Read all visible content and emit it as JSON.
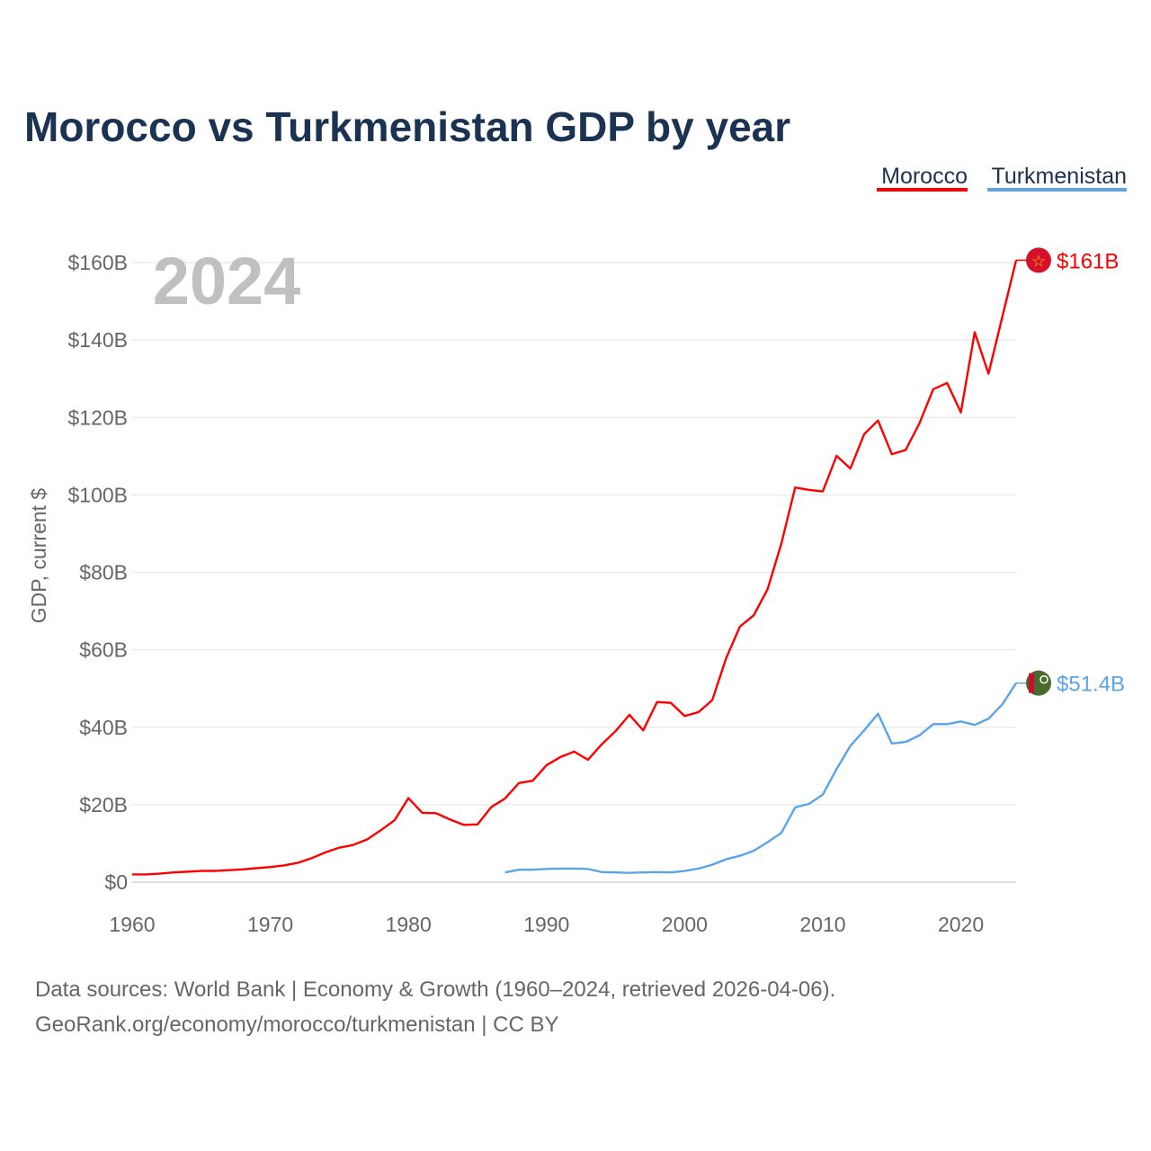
{
  "chart_data": {
    "type": "line",
    "title": "Morocco vs Turkmenistan GDP by year",
    "ylabel": "GDP, current $",
    "xlabel": "",
    "year_watermark": "2024",
    "xlim": [
      1960,
      2024
    ],
    "ylim": [
      0,
      160
    ],
    "x_ticks": [
      1960,
      1970,
      1980,
      1990,
      2000,
      2010,
      2020
    ],
    "x_tick_labels": [
      "1960",
      "1970",
      "1980",
      "1990",
      "2000",
      "2010",
      "2020"
    ],
    "y_ticks": [
      0,
      20,
      40,
      60,
      80,
      100,
      120,
      140,
      160
    ],
    "y_tick_labels": [
      "$0",
      "$20B",
      "$40B",
      "$60B",
      "$80B",
      "$100B",
      "$120B",
      "$140B",
      "$160B"
    ],
    "grid": true,
    "legend_placement": "top-right",
    "series": [
      {
        "name": "Morocco",
        "color": "#ff0000",
        "end_label": "$161B",
        "start_year": 1960,
        "values": [
          2.0,
          2.0,
          2.2,
          2.5,
          2.7,
          2.9,
          2.9,
          3.1,
          3.3,
          3.6,
          3.9,
          4.3,
          5.0,
          6.2,
          7.7,
          8.9,
          9.6,
          11.0,
          13.4,
          16.0,
          21.7,
          17.9,
          17.8,
          16.2,
          14.8,
          14.9,
          19.4,
          21.6,
          25.6,
          26.2,
          30.2,
          32.3,
          33.7,
          31.6,
          35.6,
          39.0,
          43.2,
          39.2,
          46.5,
          46.3,
          42.9,
          43.9,
          47.0,
          57.8,
          66.0,
          68.9,
          75.6,
          87.4,
          101.9,
          101.3,
          100.9,
          110.1,
          106.8,
          115.7,
          119.2,
          110.5,
          111.6,
          118.5,
          127.3,
          128.9,
          121.3,
          142.0,
          131.3,
          146.0,
          160.6
        ]
      },
      {
        "name": "Turkmenistan",
        "color": "#5aa5ea",
        "end_label": "$51.4B",
        "start_year": 1987,
        "values": [
          2.5,
          3.2,
          3.2,
          3.4,
          3.5,
          3.5,
          3.4,
          2.6,
          2.5,
          2.4,
          2.5,
          2.6,
          2.5,
          2.9,
          3.5,
          4.5,
          5.9,
          6.8,
          8.1,
          10.3,
          12.7,
          19.3,
          20.2,
          22.6,
          29.2,
          35.2,
          39.2,
          43.5,
          35.8,
          36.2,
          37.9,
          40.8,
          40.8,
          41.5,
          40.6,
          42.2,
          45.9,
          51.4
        ]
      }
    ]
  },
  "footer": {
    "line1": "Data sources: World Bank | Economy & Growth (1960–2024, retrieved 2026-04-06).",
    "line2": "GeoRank.org/economy/morocco/turkmenistan | CC BY"
  }
}
